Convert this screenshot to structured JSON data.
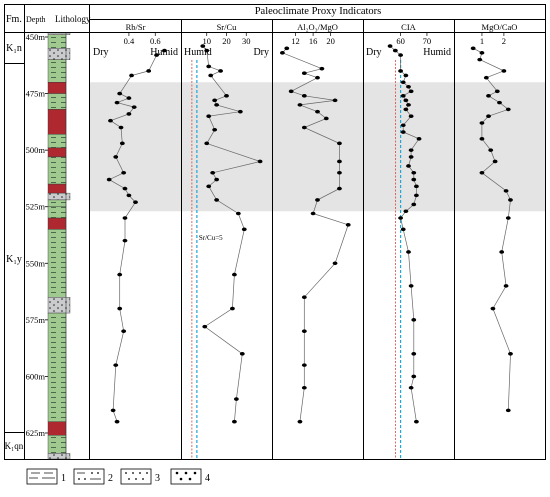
{
  "header": {
    "fm": "Fm.",
    "depth": "Depth",
    "lithology": "Lithology",
    "main_title": "Paleoclimate Proxy Indicators"
  },
  "formations": [
    {
      "label": "K₁n"
    },
    {
      "label": "K₁y"
    },
    {
      "label": "K₁qn"
    }
  ],
  "depth_ticks": [
    "450m",
    "475m",
    "500m",
    "525m",
    "550m",
    "575m",
    "600m",
    "625m"
  ],
  "depth_values": [
    450,
    475,
    500,
    525,
    550,
    575,
    600,
    625
  ],
  "shaded_interval": [
    470,
    527
  ],
  "colors": {
    "mudstone": "#9fc98f",
    "red_bed": "#b0282f",
    "gray_bed": "#c9cbcd",
    "shade": "#e4e4e4",
    "guide_red": "#d04a3a",
    "guide_blue": "#20a7d8"
  },
  "lithology_column": [
    {
      "from": 446,
      "to": 449,
      "kind": "gray_bed"
    },
    {
      "from": 449,
      "to": 455,
      "kind": "mudstone"
    },
    {
      "from": 455,
      "to": 460,
      "kind": "gray_bed"
    },
    {
      "from": 460,
      "to": 470,
      "kind": "mudstone"
    },
    {
      "from": 470,
      "to": 475,
      "kind": "red_bed"
    },
    {
      "from": 475,
      "to": 482,
      "kind": "mudstone"
    },
    {
      "from": 482,
      "to": 493,
      "kind": "red_bed"
    },
    {
      "from": 493,
      "to": 499,
      "kind": "mudstone"
    },
    {
      "from": 499,
      "to": 503,
      "kind": "red_bed"
    },
    {
      "from": 503,
      "to": 515,
      "kind": "mudstone"
    },
    {
      "from": 515,
      "to": 519,
      "kind": "red_bed"
    },
    {
      "from": 519,
      "to": 522,
      "kind": "gray_bed"
    },
    {
      "from": 522,
      "to": 525,
      "kind": "mudstone"
    },
    {
      "from": 525,
      "to": 530,
      "kind": "mudstone"
    },
    {
      "from": 530,
      "to": 535,
      "kind": "red_bed"
    },
    {
      "from": 535,
      "to": 565,
      "kind": "mudstone"
    },
    {
      "from": 565,
      "to": 572,
      "kind": "gray_bed"
    },
    {
      "from": 572,
      "to": 620,
      "kind": "mudstone"
    },
    {
      "from": 620,
      "to": 626,
      "kind": "red_bed"
    },
    {
      "from": 626,
      "to": 634,
      "kind": "mudstone"
    },
    {
      "from": 634,
      "to": 641,
      "kind": "gray_bed"
    }
  ],
  "panels": [
    {
      "title": "Rb/Sr",
      "ticks": [
        "0.4",
        "0.6"
      ],
      "tick_values": [
        0.4,
        0.6
      ],
      "xlim": [
        0.15,
        0.75
      ],
      "left_label": "Dry",
      "right_label": "Humid",
      "depths": [
        456,
        458,
        465,
        467,
        475,
        477,
        479,
        481,
        484,
        487,
        490,
        497,
        503,
        510,
        513,
        517,
        520,
        523,
        530,
        540,
        555,
        570,
        580,
        595,
        615,
        620
      ],
      "values": [
        0.67,
        0.61,
        0.55,
        0.42,
        0.33,
        0.4,
        0.31,
        0.44,
        0.4,
        0.26,
        0.34,
        0.35,
        0.3,
        0.36,
        0.25,
        0.37,
        0.4,
        0.45,
        0.37,
        0.37,
        0.33,
        0.33,
        0.36,
        0.3,
        0.28,
        0.31
      ]
    },
    {
      "title": "Sr/Cu",
      "ticks": [
        "10",
        "20",
        "30"
      ],
      "tick_values": [
        10,
        20,
        30
      ],
      "xlim": [
        0,
        40
      ],
      "left_label": "Humid",
      "right_label": "Dry",
      "reference_line": {
        "value": 5,
        "label": "Sr/Cu=5"
      },
      "depths": [
        454,
        456,
        463,
        465,
        467,
        476,
        478,
        480,
        483,
        485,
        491,
        497,
        505,
        510,
        513,
        516,
        522,
        528,
        535,
        555,
        570,
        578,
        590,
        610,
        620
      ],
      "values": [
        8,
        10,
        11,
        17,
        12,
        20,
        14,
        15,
        27,
        11,
        14,
        10,
        37,
        13,
        15,
        11,
        15,
        26,
        29,
        24,
        23,
        9,
        28,
        25,
        24
      ]
    },
    {
      "title": "Al₂O₃/MgO",
      "ticks": [
        "12",
        "16",
        "20"
      ],
      "tick_values": [
        12,
        16,
        20
      ],
      "xlim": [
        8,
        26
      ],
      "left_label": "",
      "right_label": "",
      "depths": [
        455,
        457,
        464,
        466,
        468,
        474,
        476,
        478,
        480,
        483,
        486,
        490,
        497,
        505,
        510,
        517,
        522,
        528,
        533,
        550,
        565,
        580,
        595,
        605,
        620
      ],
      "values": [
        10,
        9,
        18,
        14,
        17,
        11,
        14,
        21,
        13,
        17,
        19,
        14,
        22,
        22,
        22,
        22,
        17,
        16,
        24,
        21,
        14,
        14,
        14,
        14,
        13
      ]
    },
    {
      "title": "CIA",
      "ticks": [
        "60",
        "70"
      ],
      "tick_values": [
        60,
        70
      ],
      "xlim": [
        48,
        78
      ],
      "left_label": "Dry",
      "right_label": "Humid",
      "reference_line": {
        "value": 60,
        "label": ""
      },
      "depths": [
        454,
        456,
        458,
        465,
        467,
        470,
        472,
        474,
        476,
        478,
        480,
        482,
        485,
        489,
        492,
        495,
        500,
        503,
        507,
        510,
        513,
        516,
        520,
        524,
        527,
        530,
        535,
        545,
        560,
        575,
        590,
        600,
        605,
        620
      ],
      "values": [
        56,
        58,
        60,
        60,
        62,
        61,
        63,
        64,
        61,
        62,
        63,
        62,
        64,
        61,
        61,
        67,
        64,
        64,
        63,
        65,
        65,
        66,
        66,
        65,
        62,
        60,
        61,
        63,
        64,
        65,
        65,
        65,
        64,
        66
      ]
    },
    {
      "title": "MgO/CaO",
      "ticks": [
        "1",
        "2"
      ],
      "tick_values": [
        1,
        2
      ],
      "xlim": [
        0,
        3.6
      ],
      "left_label": "",
      "right_label": "",
      "depths": [
        455,
        457,
        460,
        465,
        468,
        474,
        476,
        479,
        482,
        485,
        488,
        495,
        500,
        505,
        510,
        518,
        522,
        530,
        545,
        560,
        570,
        590,
        615
      ],
      "values": [
        0.6,
        1.0,
        0.9,
        2.0,
        1.2,
        1.7,
        1.3,
        1.8,
        2.2,
        1.3,
        1.0,
        1.0,
        1.4,
        1.6,
        1.0,
        2.1,
        2.3,
        2.2,
        1.9,
        2.1,
        1.5,
        2.3,
        2.2
      ]
    }
  ],
  "legend": [
    {
      "number": "1"
    },
    {
      "number": "2"
    },
    {
      "number": "3"
    },
    {
      "number": "4"
    }
  ]
}
